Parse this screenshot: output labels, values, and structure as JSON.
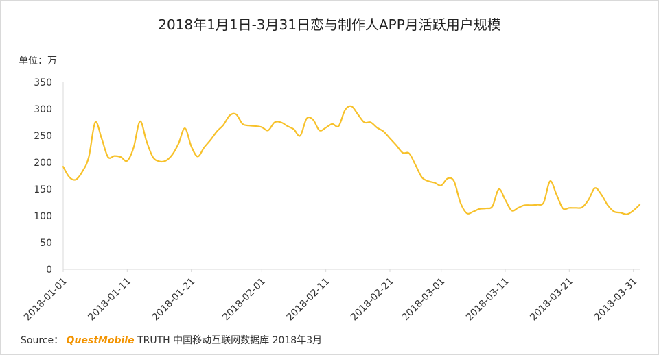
{
  "title": "2018年1月1日-3月31日恋与制作人APP月活跃用户规模",
  "unit_label": "单位：万",
  "source": {
    "prefix": "Source：",
    "brand": "QuestMobile",
    "suffix": "TRUTH 中国移动互联网数据库 2018年3月"
  },
  "colors": {
    "line": "#F7C12A",
    "axis": "#d9d9d9",
    "text": "#333333",
    "brand": "#F29300"
  },
  "chart_data": {
    "type": "line",
    "title": "2018年1月1日-3月31日恋与制作人APP月活跃用户规模",
    "ylabel": "单位：万",
    "ylim": [
      0,
      350
    ],
    "yticks": [
      0,
      50,
      100,
      150,
      200,
      250,
      300,
      350
    ],
    "x_start": "2018-01-01",
    "xtick_labels": [
      "2018-01-01",
      "2018-01-11",
      "2018-01-21",
      "2018-02-01",
      "2018-02-11",
      "2018-02-21",
      "2018-03-01",
      "2018-03-11",
      "2018-03-21",
      "2018-03-31"
    ],
    "grid": false,
    "series": [
      {
        "values": [
          192,
          172,
          168,
          183,
          210,
          275,
          245,
          210,
          212,
          210,
          203,
          228,
          277,
          240,
          210,
          202,
          203,
          214,
          235,
          264,
          230,
          211,
          228,
          242,
          258,
          270,
          288,
          290,
          272,
          269,
          268,
          266,
          260,
          275,
          275,
          268,
          262,
          250,
          282,
          280,
          260,
          265,
          272,
          268,
          298,
          305,
          290,
          275,
          275,
          265,
          258,
          245,
          232,
          218,
          217,
          195,
          172,
          165,
          162,
          157,
          170,
          165,
          125,
          105,
          108,
          113,
          114,
          118,
          150,
          130,
          110,
          115,
          120,
          120,
          121,
          125,
          165,
          140,
          114,
          115,
          115,
          116,
          130,
          152,
          140,
          120,
          108,
          106,
          103,
          110,
          121
        ]
      }
    ]
  }
}
